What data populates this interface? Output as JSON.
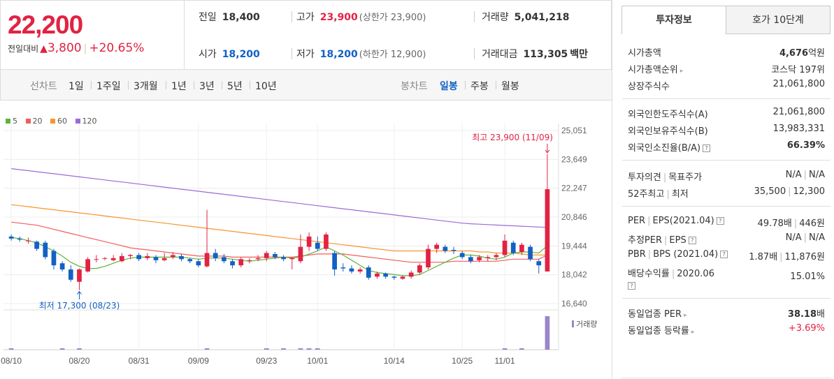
{
  "quote": {
    "price": "22,200",
    "change_label": "전일대비",
    "change_arrow": "▲",
    "change_value": "3,800",
    "change_rate": "+20.65%"
  },
  "stats": {
    "prev_close_label": "전일",
    "prev_close": "18,400",
    "high_label": "고가",
    "high": "23,900",
    "upper_limit": "(상한가 23,900)",
    "volume_label": "거래량",
    "volume": "5,041,218",
    "open_label": "시가",
    "open": "18,200",
    "low_label": "저가",
    "low": "18,200",
    "lower_limit": "(하한가 12,900)",
    "amount_label": "거래대금",
    "amount": "113,305",
    "amount_unit": "백만"
  },
  "periodbar": {
    "line_label": "선차트",
    "line_periods": [
      "1일",
      "1주일",
      "3개월",
      "1년",
      "3년",
      "5년",
      "10년"
    ],
    "candle_label": "봉차트",
    "candle_periods": [
      "일봉",
      "주봉",
      "월봉"
    ],
    "candle_active": "일봉"
  },
  "colors": {
    "up": "#e12343",
    "down": "#1261c4",
    "ma5": "#5cb33d",
    "ma20": "#f35c5c",
    "ma60": "#f7942e",
    "ma120": "#9b6ad8",
    "volume": "#9b86c9"
  },
  "chart_data": {
    "type": "candlestick",
    "legend": [
      "5",
      "20",
      "60",
      "120"
    ],
    "y_ticks": [
      25051,
      23649,
      22247,
      20846,
      19444,
      18042,
      16640
    ],
    "y_tick_labels": [
      "25,051",
      "23,649",
      "22,247",
      "20,846",
      "19,444",
      "18,042",
      "16,640"
    ],
    "ylim": [
      16640,
      25051
    ],
    "x_labels": [
      "08/10",
      "08/20",
      "08/31",
      "09/09",
      "09/23",
      "10/01",
      "10/14",
      "10/25",
      "11/01"
    ],
    "x_label_index": [
      0,
      8,
      15,
      22,
      30,
      36,
      45,
      53,
      58
    ],
    "annotation_high": "최고 23,900 (11/09)",
    "annotation_low": "최저 17,300 (08/23)",
    "volume_label": "거래량",
    "candles": [
      [
        19900,
        19800,
        20000,
        19700
      ],
      [
        19800,
        19750,
        19900,
        19650
      ],
      [
        19700,
        19700,
        19850,
        19550
      ],
      [
        19650,
        19300,
        19700,
        19200
      ],
      [
        19600,
        18900,
        19700,
        18800
      ],
      [
        19200,
        18500,
        19300,
        18300
      ],
      [
        18600,
        18300,
        18700,
        18200
      ],
      [
        18300,
        17800,
        18500,
        17700
      ],
      [
        17700,
        18300,
        18350,
        17300
      ],
      [
        18200,
        18800,
        18900,
        18150
      ],
      [
        18800,
        18800,
        19000,
        18650
      ],
      [
        18850,
        18850,
        18900,
        18750
      ],
      [
        18750,
        18850,
        19000,
        18700
      ],
      [
        18700,
        18950,
        19100,
        18650
      ],
      [
        18950,
        19000,
        19050,
        18800
      ],
      [
        19000,
        18800,
        19100,
        18700
      ],
      [
        18850,
        18950,
        19100,
        18750
      ],
      [
        18900,
        18750,
        19000,
        18600
      ],
      [
        18750,
        18850,
        19100,
        18700
      ],
      [
        18900,
        19000,
        19150,
        18800
      ],
      [
        18950,
        18800,
        19050,
        18700
      ],
      [
        18800,
        18700,
        18850,
        18600
      ],
      [
        18700,
        18500,
        18800,
        18400
      ],
      [
        18450,
        19100,
        21200,
        18400
      ],
      [
        19100,
        18850,
        19300,
        18700
      ],
      [
        18900,
        18700,
        19050,
        18600
      ],
      [
        18700,
        18500,
        18800,
        18350
      ],
      [
        18500,
        18800,
        18900,
        18400
      ],
      [
        18750,
        18750,
        18850,
        18600
      ],
      [
        18800,
        18850,
        19000,
        18700
      ],
      [
        18850,
        19100,
        19200,
        18700
      ],
      [
        19050,
        18900,
        19150,
        18800
      ],
      [
        18900,
        18800,
        19000,
        18700
      ],
      [
        18800,
        18850,
        18900,
        18300
      ],
      [
        18700,
        19400,
        20000,
        18600
      ],
      [
        19400,
        19900,
        20100,
        19200
      ],
      [
        19600,
        19300,
        19900,
        19200
      ],
      [
        19300,
        20000,
        20100,
        19200
      ],
      [
        19100,
        18300,
        19200,
        18000
      ],
      [
        18400,
        18350,
        18600,
        18200
      ],
      [
        18350,
        18200,
        18500,
        18100
      ],
      [
        18200,
        18300,
        18400,
        18100
      ],
      [
        18400,
        17900,
        18500,
        17800
      ],
      [
        17950,
        18100,
        18200,
        17850
      ],
      [
        18100,
        17950,
        18150,
        17850
      ],
      [
        17950,
        17900,
        18000,
        17800
      ],
      [
        17850,
        17950,
        18000,
        17800
      ],
      [
        17950,
        18150,
        18250,
        17850
      ],
      [
        18150,
        18500,
        18600,
        18050
      ],
      [
        18400,
        19300,
        19500,
        18300
      ],
      [
        19300,
        19500,
        19600,
        19100
      ],
      [
        19400,
        19200,
        19500,
        19100
      ],
      [
        19250,
        19200,
        19400,
        19050
      ],
      [
        19100,
        18900,
        19200,
        18800
      ],
      [
        18900,
        18700,
        19000,
        18600
      ],
      [
        18750,
        18900,
        19000,
        18650
      ],
      [
        18850,
        18900,
        19000,
        18700
      ],
      [
        18900,
        19000,
        19100,
        18750
      ],
      [
        19000,
        19700,
        20000,
        18900
      ],
      [
        19600,
        19100,
        19700,
        19000
      ],
      [
        19150,
        19500,
        19600,
        19000
      ],
      [
        19400,
        18800,
        19500,
        18700
      ],
      [
        18700,
        18500,
        18800,
        18100
      ],
      [
        18200,
        22200,
        23900,
        18200
      ]
    ],
    "ma5": [
      19850,
      19800,
      19700,
      19600,
      19400,
      19200,
      18950,
      18650,
      18450,
      18350,
      18350,
      18450,
      18600,
      18750,
      18850,
      18900,
      18900,
      18900,
      18900,
      18900,
      18900,
      18850,
      18800,
      18850,
      18850,
      18850,
      18800,
      18750,
      18700,
      18750,
      18800,
      18850,
      18900,
      18850,
      18900,
      19050,
      19200,
      19400,
      19200,
      19000,
      18750,
      18500,
      18250,
      18150,
      18100,
      18050,
      18000,
      18000,
      18050,
      18250,
      18450,
      18650,
      18850,
      19000,
      19000,
      18950,
      18850,
      18800,
      18900,
      19100,
      19150,
      19150,
      19100,
      19450
    ],
    "ma20": [
      20600,
      20550,
      20500,
      20450,
      20350,
      20250,
      20150,
      20050,
      19950,
      19850,
      19750,
      19650,
      19550,
      19450,
      19350,
      19300,
      19250,
      19200,
      19150,
      19100,
      19050,
      19000,
      18950,
      18950,
      18950,
      18950,
      18900,
      18900,
      18900,
      18900,
      18900,
      18900,
      18900,
      18900,
      18950,
      19000,
      19050,
      19050,
      19050,
      19050,
      19000,
      18950,
      18900,
      18850,
      18800,
      18750,
      18700,
      18650,
      18650,
      18650,
      18650,
      18650,
      18700,
      18700,
      18700,
      18700,
      18700,
      18700,
      18750,
      18800,
      18800,
      18800,
      18800,
      19000
    ],
    "ma60": [
      21450,
      21400,
      21350,
      21300,
      21250,
      21200,
      21150,
      21100,
      21050,
      21000,
      20950,
      20900,
      20850,
      20800,
      20750,
      20700,
      20650,
      20600,
      20550,
      20500,
      20450,
      20400,
      20350,
      20300,
      20250,
      20200,
      20150,
      20100,
      20050,
      20000,
      19950,
      19900,
      19850,
      19800,
      19750,
      19700,
      19650,
      19600,
      19550,
      19500,
      19450,
      19400,
      19350,
      19300,
      19250,
      19200,
      19200,
      19200,
      19200,
      19200,
      19200,
      19200,
      19200,
      19200,
      19200,
      19150,
      19150,
      19100,
      19100,
      19100,
      19050,
      19000,
      19000,
      19000
    ],
    "ma120": [
      23200,
      23150,
      23100,
      23050,
      23000,
      22950,
      22900,
      22850,
      22800,
      22750,
      22700,
      22650,
      22600,
      22550,
      22500,
      22450,
      22400,
      22350,
      22300,
      22250,
      22200,
      22150,
      22100,
      22050,
      22000,
      21950,
      21900,
      21850,
      21800,
      21750,
      21700,
      21650,
      21600,
      21550,
      21500,
      21450,
      21400,
      21350,
      21300,
      21250,
      21200,
      21150,
      21100,
      21050,
      21000,
      20950,
      20900,
      20850,
      20800,
      20750,
      20700,
      20650,
      20600,
      20550,
      20520,
      20500,
      20480,
      20460,
      20440,
      20420,
      20400,
      20380,
      20360,
      20350
    ],
    "volumes": [
      1,
      0,
      0,
      0,
      0,
      0,
      1,
      0,
      1,
      0,
      0,
      0,
      0,
      0,
      0,
      0,
      0,
      0,
      0,
      0,
      0,
      0,
      0,
      1,
      0,
      0,
      0,
      0,
      0,
      0,
      1,
      0,
      1,
      0,
      1,
      1,
      1,
      0,
      0,
      0,
      0,
      0,
      0,
      0,
      0,
      0,
      0,
      0,
      0,
      0,
      0,
      0,
      0,
      0,
      0,
      0,
      0,
      0,
      1,
      0,
      1,
      0,
      0,
      50
    ]
  },
  "invest": {
    "tab_info": "투자정보",
    "tab_orderbook": "호가 10단계",
    "rows": [
      {
        "k": "시가총액",
        "v": "4,676",
        "u": "억원"
      },
      {
        "k": "시가총액순위",
        "v": "코스닥 197위"
      },
      {
        "k": "상장주식수",
        "v": "21,061,800"
      },
      {
        "k": "외국인한도주식수(A)",
        "v": "21,061,800"
      },
      {
        "k": "외국인보유주식수(B)",
        "v": "13,983,331"
      },
      {
        "k": "외국인소진율(B/A)",
        "v": "66.39%"
      },
      {
        "k1": "투자의견",
        "k2": "목표주가",
        "v1": "N/A",
        "v2": "N/A"
      },
      {
        "k1": "52주최고",
        "k2": "최저",
        "v1": "35,500",
        "v2": "12,300"
      },
      {
        "k1": "PER",
        "k2": "EPS(2021.04)",
        "v1": "49.78배",
        "v2": "446원"
      },
      {
        "k1": "추정PER",
        "k2": "EPS",
        "v1": "N/A",
        "v2": "N/A"
      },
      {
        "k1": "PBR",
        "k2": "BPS (2021.04)",
        "v1": "1.87배",
        "v2": "11,876원"
      },
      {
        "k1": "배당수익률",
        "k2": "2020.06",
        "v": "15.01%"
      },
      {
        "k": "동일업종 PER",
        "v": "38.18",
        "u": "배"
      },
      {
        "k": "동일업종 등락률",
        "v": "+3.69%"
      }
    ]
  }
}
